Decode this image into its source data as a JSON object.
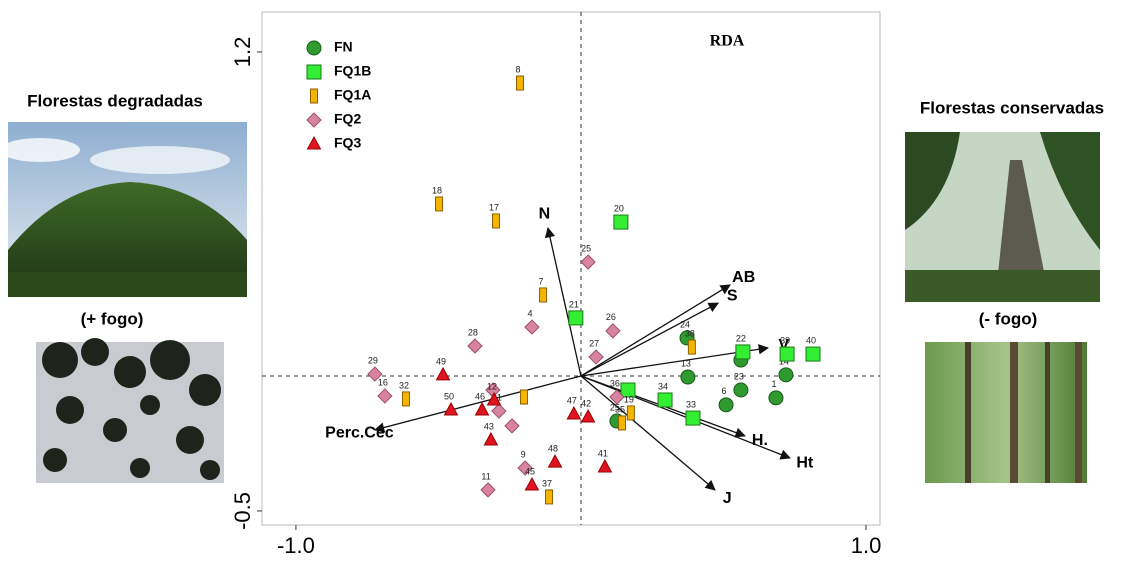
{
  "chart_data": {
    "type": "scatter",
    "title": "RDA",
    "xlim": [
      -1.119,
      1.049
    ],
    "ylim": [
      -0.552,
      1.348
    ],
    "xticks": [
      {
        "value": -1,
        "label": "-1.0"
      },
      {
        "value": 1,
        "label": "1.0"
      }
    ],
    "yticks": [
      -0.5,
      1.2
    ],
    "series": [
      {
        "name": "FN",
        "color": "#2f9a2f",
        "marker": "circle",
        "x": [
          0.372,
          0.561,
          0.375,
          0.561,
          0.509,
          0.719,
          0.684,
          0.126
        ],
        "y": [
          0.141,
          0.059,
          -0.004,
          -0.052,
          -0.107,
          0.004,
          -0.081,
          -0.167
        ],
        "labels": [
          "24",
          null,
          "13",
          "23",
          "6",
          "14",
          "1",
          "25"
        ]
      },
      {
        "name": "FQ1B",
        "color": "#33ee33",
        "marker": "square",
        "x": [
          0.14,
          -0.018,
          0.568,
          0.723,
          0.814,
          0.165,
          0.295,
          0.393
        ],
        "y": [
          0.57,
          0.215,
          0.089,
          0.081,
          0.081,
          -0.052,
          -0.089,
          -0.156
        ],
        "labels": [
          "20",
          "21",
          "22",
          "39",
          "40",
          null,
          "34",
          "33"
        ]
      },
      {
        "name": "FQ1A",
        "color": "#f5b400",
        "marker": "bar",
        "x": [
          -0.214,
          -0.498,
          -0.298,
          -0.133,
          0.389,
          -0.614,
          -0.2,
          0.175,
          0.144,
          -0.112
        ],
        "y": [
          1.085,
          0.637,
          0.574,
          0.3,
          0.107,
          -0.085,
          -0.078,
          -0.137,
          -0.174,
          -0.448
        ],
        "labels": [
          "8",
          "18",
          "17",
          "7",
          "38",
          "32",
          null,
          "19",
          "35",
          "37"
        ]
      },
      {
        "name": "FQ2",
        "color": "#d8839f",
        "marker": "diamond",
        "x": [
          0.025,
          -0.172,
          0.112,
          -0.372,
          0.053,
          -0.723,
          -0.688,
          -0.309,
          -0.288,
          0.126,
          -0.242,
          -0.196,
          -0.326
        ],
        "y": [
          0.422,
          0.181,
          0.167,
          0.111,
          0.07,
          0.007,
          -0.074,
          -0.052,
          -0.13,
          -0.078,
          -0.185,
          -0.341,
          -0.422
        ],
        "labels": [
          "25",
          "4",
          "26",
          "28",
          "27",
          "29",
          "16",
          null,
          "31",
          "36",
          null,
          "9",
          "11"
        ]
      },
      {
        "name": "FQ3",
        "color": "#e01420",
        "marker": "triangle",
        "x": [
          -0.484,
          -0.456,
          -0.347,
          -0.305,
          -0.316,
          -0.025,
          0.025,
          -0.091,
          -0.172,
          0.084
        ],
        "y": [
          0.004,
          -0.126,
          -0.126,
          -0.089,
          -0.237,
          -0.141,
          -0.152,
          -0.319,
          -0.404,
          -0.337
        ],
        "labels": [
          "49",
          "50",
          "46",
          "12",
          "43",
          "47",
          "42",
          "48",
          "45",
          "41"
        ]
      }
    ],
    "vectors": {
      "names": [
        "N",
        "AB",
        "S",
        "V",
        "H.",
        "Ht",
        "J",
        "Perc.Cec"
      ],
      "x": [
        -0.116,
        0.523,
        0.481,
        0.656,
        0.575,
        0.733,
        0.47,
        -0.723
      ],
      "y": [
        0.548,
        0.337,
        0.27,
        0.104,
        -0.222,
        -0.304,
        -0.422,
        -0.2
      ]
    }
  },
  "photos": {
    "left_title": "Florestas degradadas",
    "left_caption": "(+ fogo)",
    "right_title": "Florestas conservadas",
    "right_caption": "(- fogo)"
  }
}
